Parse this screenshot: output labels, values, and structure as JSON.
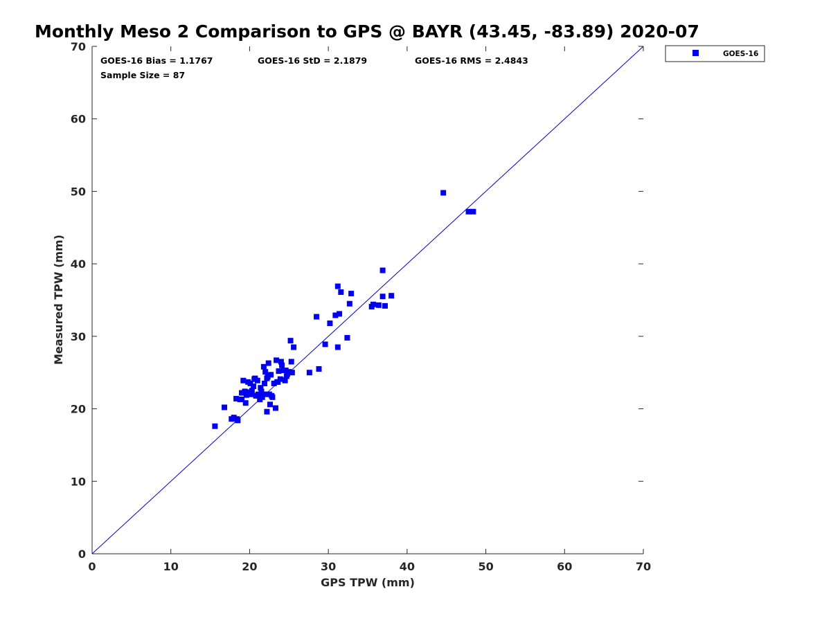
{
  "chart_data": {
    "type": "scatter",
    "title": "Monthly Meso 2 Comparison to GPS @ BAYR (43.45, -83.89) 2020-07",
    "xlabel": "GPS TPW (mm)",
    "ylabel": "Measured TPW (mm)",
    "xlim": [
      0,
      70
    ],
    "ylim": [
      0,
      70
    ],
    "xticks": [
      "0",
      "10",
      "20",
      "30",
      "40",
      "50",
      "60",
      "70"
    ],
    "yticks": [
      "0",
      "10",
      "20",
      "30",
      "40",
      "50",
      "60",
      "70"
    ],
    "grid": false,
    "legend_position": "outside-top-right",
    "reference_line": {
      "x": [
        0,
        70
      ],
      "y": [
        0,
        70
      ],
      "color": "#0000cc"
    },
    "annotations": {
      "bias": "GOES-16 Bias = 1.1767",
      "std": "GOES-16 StD = 2.1879",
      "rms": "GOES-16 RMS = 2.4843",
      "sample_size": "Sample Size = 87"
    },
    "series": [
      {
        "name": "GOES-16",
        "color": "#0000ee",
        "marker": "square",
        "x": [
          15.6,
          16.8,
          17.7,
          18.0,
          18.3,
          18.5,
          18.8,
          19.0,
          19.2,
          19.4,
          19.5,
          19.6,
          19.8,
          20.0,
          20.1,
          20.3,
          20.5,
          20.6,
          20.8,
          21.0,
          21.1,
          21.3,
          21.4,
          21.5,
          21.6,
          21.8,
          21.9,
          22.0,
          22.1,
          22.2,
          22.3,
          22.5,
          22.6,
          22.7,
          22.9,
          23.1,
          23.3,
          23.5,
          23.7,
          23.9,
          24.1,
          24.3,
          24.5,
          24.7,
          25.0,
          25.2,
          25.4,
          25.6,
          27.6,
          28.5,
          28.8,
          29.6,
          30.2,
          30.9,
          31.2,
          31.4,
          31.6,
          32.4,
          32.7,
          32.9,
          35.5,
          35.7,
          36.4,
          36.9,
          37.2,
          38.0,
          44.6,
          47.8,
          48.4,
          18.4,
          19.0,
          19.6,
          20.2,
          20.9,
          21.6,
          22.2,
          22.8,
          23.4,
          24.0,
          24.6,
          25.3,
          20.7,
          22.4,
          23.6,
          36.9,
          31.2,
          24.8
        ],
        "y": [
          17.6,
          20.2,
          18.6,
          18.8,
          21.4,
          18.4,
          21.3,
          22.2,
          23.9,
          22.4,
          20.8,
          22.3,
          23.7,
          22.0,
          23.5,
          22.5,
          23.1,
          24.1,
          21.8,
          23.9,
          22.0,
          21.3,
          22.9,
          22.4,
          21.7,
          25.8,
          23.5,
          25.1,
          22.0,
          19.6,
          24.4,
          22.0,
          20.6,
          24.7,
          21.6,
          23.5,
          20.1,
          23.7,
          25.2,
          24.1,
          26.0,
          25.3,
          23.9,
          24.5,
          25.1,
          29.4,
          25.0,
          28.5,
          25.0,
          32.7,
          25.5,
          28.9,
          31.8,
          32.9,
          28.5,
          33.1,
          36.1,
          29.8,
          34.5,
          35.9,
          34.1,
          34.4,
          34.3,
          35.5,
          34.2,
          35.6,
          49.8,
          47.2,
          47.2,
          18.6,
          21.3,
          21.9,
          22.0,
          21.8,
          21.6,
          24.2,
          21.8,
          26.7,
          26.5,
          25.3,
          26.5,
          24.2,
          26.3,
          23.7,
          39.1,
          36.9,
          24.8
        ]
      }
    ]
  }
}
